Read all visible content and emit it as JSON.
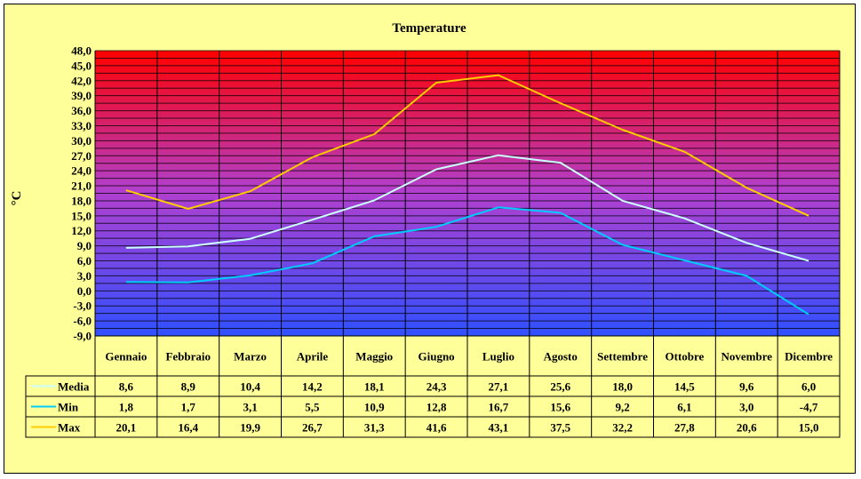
{
  "chart_data": {
    "type": "line",
    "title": "Temperature",
    "ylabel": "°C",
    "xlabel": "",
    "ylim": [
      -9.0,
      48.0
    ],
    "ytick_step": 3.0,
    "ytick_labels": [
      "48,0",
      "45,0",
      "42,0",
      "39,0",
      "36,0",
      "33,0",
      "30,0",
      "27,0",
      "24,0",
      "21,0",
      "18,0",
      "15,0",
      "12,0",
      "9,0",
      "6,0",
      "3,0",
      "0,0",
      "-3,0",
      "-6,0",
      "-9,0"
    ],
    "grid": true,
    "background": "vertical gradient red (top) to blue (bottom)",
    "legend": "data-table",
    "categories": [
      "Gennaio",
      "Febbraio",
      "Marzo",
      "Aprile",
      "Maggio",
      "Giugno",
      "Luglio",
      "Agosto",
      "Settembre",
      "Ottobre",
      "Novembre",
      "Dicembre"
    ],
    "series": [
      {
        "name": "Media",
        "color": "#ccffff",
        "values": [
          8.6,
          8.9,
          10.4,
          14.2,
          18.1,
          24.3,
          27.1,
          25.6,
          18.0,
          14.5,
          9.6,
          6.0
        ],
        "labels": [
          "8,6",
          "8,9",
          "10,4",
          "14,2",
          "18,1",
          "24,3",
          "27,1",
          "25,6",
          "18,0",
          "14,5",
          "9,6",
          "6,0"
        ]
      },
      {
        "name": "Min",
        "color": "#00ccff",
        "values": [
          1.8,
          1.7,
          3.1,
          5.5,
          10.9,
          12.8,
          16.7,
          15.6,
          9.2,
          6.1,
          3.0,
          -4.7
        ],
        "labels": [
          "1,8",
          "1,7",
          "3,1",
          "5,5",
          "10,9",
          "12,8",
          "16,7",
          "15,6",
          "9,2",
          "6,1",
          "3,0",
          "-4,7"
        ]
      },
      {
        "name": "Max",
        "color": "#ffcc00",
        "values": [
          20.1,
          16.4,
          19.9,
          26.7,
          31.3,
          41.6,
          43.1,
          37.5,
          32.2,
          27.8,
          20.6,
          15.0
        ],
        "labels": [
          "20,1",
          "16,4",
          "19,9",
          "26,7",
          "31,3",
          "41,6",
          "43,1",
          "37,5",
          "32,2",
          "27,8",
          "20,6",
          "15,0"
        ]
      }
    ]
  }
}
